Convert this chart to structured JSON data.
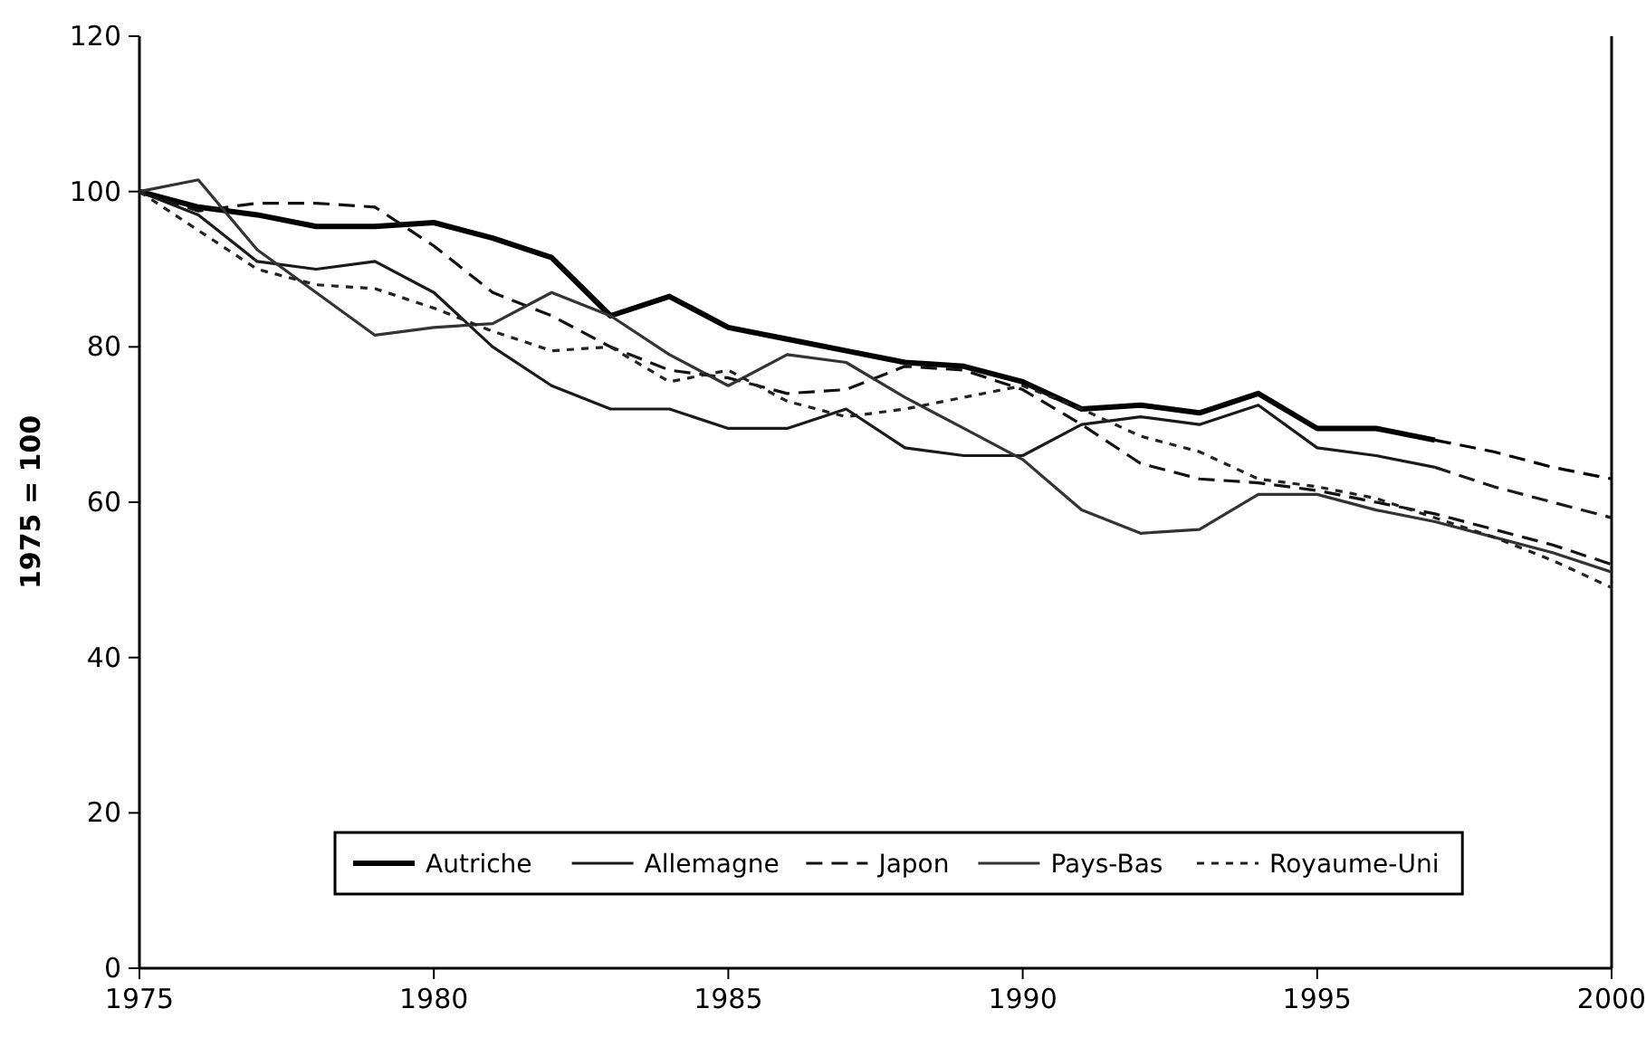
{
  "chart_data": {
    "type": "line",
    "ylabel": "1975 = 100",
    "x": [
      1975,
      1976,
      1977,
      1978,
      1979,
      1980,
      1981,
      1982,
      1983,
      1984,
      1985,
      1986,
      1987,
      1988,
      1989,
      1990,
      1991,
      1992,
      1993,
      1994,
      1995,
      1996,
      1997,
      1998,
      1999,
      2000
    ],
    "xlim": [
      1975,
      2000
    ],
    "xticks": [
      1975,
      1980,
      1985,
      1990,
      1995,
      2000
    ],
    "ylim": [
      0,
      120
    ],
    "yticks": [
      0,
      20,
      40,
      60,
      80,
      100,
      120
    ],
    "grid": false,
    "legend": "bottom",
    "series": [
      {
        "name": "Autriche",
        "color": "#000000",
        "line_style": "solid",
        "values": [
          100,
          98,
          97,
          95.5,
          95.5,
          96,
          94,
          91.5,
          84,
          86.5,
          82.5,
          81,
          79.5,
          78,
          77.5,
          75.5,
          72,
          72.5,
          71.5,
          74,
          69.5,
          69.5,
          68,
          null,
          null,
          null
        ]
      },
      {
        "name": "Allemagne",
        "color": "#1a1a1a",
        "line_style": "solid",
        "values": [
          100,
          97,
          91,
          90,
          91,
          87,
          80,
          75,
          72,
          72,
          69.5,
          69.5,
          72,
          67,
          66,
          66,
          70,
          71,
          70,
          72.5,
          67,
          66,
          64.5,
          null,
          null,
          null
        ]
      },
      {
        "name": "Japon",
        "color": "#111111",
        "line_style": "dashed",
        "values": [
          100,
          97.5,
          98.5,
          98.5,
          98,
          93,
          87,
          84,
          80,
          77,
          76,
          74,
          74.5,
          77.5,
          77,
          74.5,
          70,
          65,
          63,
          62.5,
          61.5,
          60,
          58.5,
          56.5,
          54.5,
          52
        ]
      },
      {
        "name": "Pays-Bas",
        "color": "#333333",
        "line_style": "solid",
        "values": [
          100,
          101.5,
          92.5,
          87,
          81.5,
          82.5,
          83,
          87,
          84,
          79,
          75,
          79,
          78,
          73.5,
          69.5,
          65.5,
          59,
          56,
          56.5,
          61,
          61,
          59,
          57.5,
          55.5,
          53.5,
          51
        ]
      },
      {
        "name": "Royaume-Uni",
        "color": "#222222",
        "line_style": "dotted",
        "values": [
          100,
          95,
          90,
          88,
          87.5,
          85,
          82,
          79.5,
          80,
          75.5,
          77,
          73,
          71,
          72,
          73.5,
          75,
          72,
          68.5,
          66.5,
          63,
          62,
          60.5,
          58,
          55.5,
          52.5,
          49
        ]
      },
      {
        "color": "#000000",
        "line_style": "dashed",
        "values": [
          null,
          null,
          null,
          null,
          null,
          null,
          null,
          null,
          null,
          null,
          null,
          null,
          null,
          null,
          null,
          null,
          null,
          null,
          null,
          null,
          null,
          null,
          68,
          66.5,
          64.5,
          63
        ]
      },
      {
        "color": "#1a1a1a",
        "line_style": "dashed",
        "values": [
          null,
          null,
          null,
          null,
          null,
          null,
          null,
          null,
          null,
          null,
          null,
          null,
          null,
          null,
          null,
          null,
          null,
          null,
          null,
          null,
          null,
          null,
          64.5,
          62,
          60,
          58
        ]
      }
    ]
  }
}
